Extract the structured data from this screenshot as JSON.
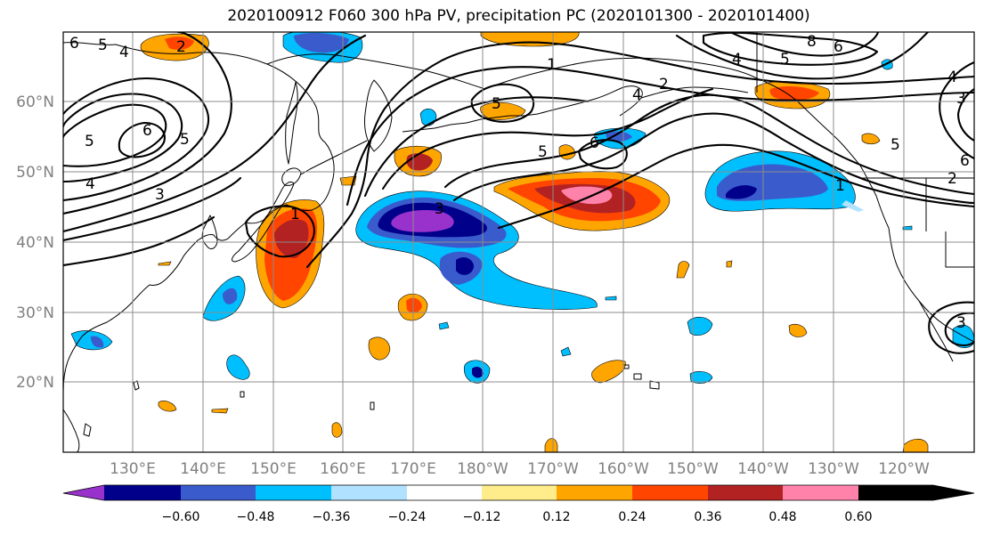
{
  "title": "2020100912 F060 300 hPa PV, precipitation PC (2020101300 - 2020101400)",
  "lat_labels": [
    "60°N",
    "50°N",
    "40°N",
    "30°N",
    "20°N"
  ],
  "lon_labels": [
    "130°E",
    "140°E",
    "150°E",
    "160°E",
    "170°E",
    "180°W",
    "170°W",
    "160°W",
    "150°W",
    "140°W",
    "130°W",
    "120°W"
  ],
  "colorbar": {
    "colors": [
      "#9932cc",
      "#00008b",
      "#3a5bcc",
      "#00bfff",
      "#b0e2ff",
      "#ffffff",
      "#ffec8b",
      "#ffa500",
      "#ff4500",
      "#b22222",
      "#ff82ab"
    ],
    "labels": [
      "−0.60",
      "−0.48",
      "−0.36",
      "−0.24",
      "−0.12",
      "0.12",
      "0.24",
      "0.36",
      "0.48",
      "0.60"
    ]
  },
  "pv_labels": [
    "6",
    "5",
    "4",
    "2",
    "5",
    "6",
    "5",
    "4",
    "3",
    "1",
    "3",
    "5",
    "1",
    "2",
    "4",
    "5",
    "6",
    "4",
    "5",
    "8",
    "6",
    "4",
    "3",
    "5",
    "6",
    "1",
    "2",
    "3"
  ]
}
